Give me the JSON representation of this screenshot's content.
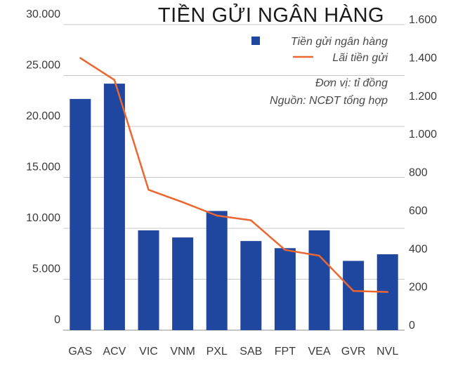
{
  "chart_data": {
    "type": "bar",
    "title": "TIỀN GỬI NGÂN HÀNG",
    "categories": [
      "GAS",
      "ACV",
      "VIC",
      "VNM",
      "PXL",
      "SAB",
      "FPT",
      "VEA",
      "GVR",
      "NVL"
    ],
    "series": [
      {
        "name": "Tiền gửi ngân hàng",
        "type": "bar",
        "axis": "left",
        "color": "#1f47a0",
        "values": [
          22700,
          24200,
          9800,
          9100,
          11700,
          8750,
          8050,
          9800,
          6800,
          7450
        ]
      },
      {
        "name": "Lãi tiền gửi",
        "type": "line",
        "axis": "right",
        "color": "#ec6630",
        "values": [
          1425,
          1310,
          735,
          670,
          600,
          575,
          420,
          390,
          205,
          200
        ]
      }
    ],
    "y_left": {
      "min": 0,
      "max": 30000,
      "ticks": [
        0,
        5000,
        10000,
        15000,
        20000,
        25000,
        30000
      ],
      "tick_labels": [
        "0",
        "5.000",
        "10.000",
        "15.000",
        "20.000",
        "25.000",
        "30.000"
      ]
    },
    "y_right": {
      "min": 0,
      "max": 1600,
      "ticks": [
        0,
        200,
        400,
        600,
        800,
        1000,
        1200,
        1400,
        1600
      ],
      "tick_labels": [
        "0",
        "200",
        "400",
        "600",
        "800",
        "1.000",
        "1.200",
        "1.400",
        "1.600"
      ]
    },
    "notes": [
      "Đơn vị: tỉ đồng",
      "Nguồn: NCĐT tổng hợp"
    ],
    "legend_position": "top-right",
    "grid": true
  }
}
